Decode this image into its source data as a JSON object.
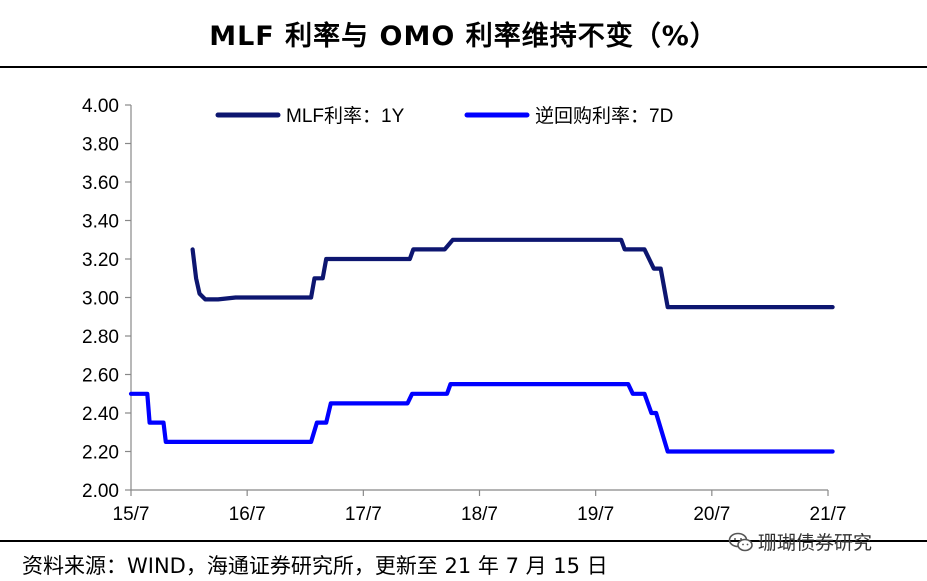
{
  "title": "MLF 利率与 OMO 利率维持不变（%）",
  "source": "资料来源：WIND，海通证券研究所，更新至 21 年 7 月 15 日",
  "watermark": "珊瑚债券研究",
  "watermark_icon": "wechat-icon",
  "colors": {
    "mlf": "#0d1670",
    "omo": "#0000ff",
    "axis": "#888888"
  },
  "chart_data": {
    "type": "line",
    "title": "MLF 利率与 OMO 利率维持不变（%）",
    "xlabel": "",
    "ylabel": "",
    "xlim": [
      2015.5,
      2021.5
    ],
    "ylim": [
      2.0,
      4.0
    ],
    "ytick_step": 0.2,
    "ytick_labels": [
      "2.00",
      "2.20",
      "2.40",
      "2.60",
      "2.80",
      "3.00",
      "3.20",
      "3.40",
      "3.60",
      "3.80",
      "4.00"
    ],
    "xtick_values": [
      2015.5,
      2016.5,
      2017.5,
      2018.5,
      2019.5,
      2020.5,
      2021.5
    ],
    "xtick_labels": [
      "15/7",
      "16/7",
      "17/7",
      "18/7",
      "19/7",
      "20/7",
      "21/7"
    ],
    "legend_position": "top",
    "grid": false,
    "series": [
      {
        "name": "MLF利率：1Y",
        "points": [
          [
            2016.03,
            3.25
          ],
          [
            2016.06,
            3.1
          ],
          [
            2016.09,
            3.02
          ],
          [
            2016.14,
            2.99
          ],
          [
            2016.25,
            2.99
          ],
          [
            2016.4,
            3.0
          ],
          [
            2017.05,
            3.0
          ],
          [
            2017.08,
            3.1
          ],
          [
            2017.15,
            3.1
          ],
          [
            2017.18,
            3.2
          ],
          [
            2017.9,
            3.2
          ],
          [
            2017.93,
            3.25
          ],
          [
            2018.2,
            3.25
          ],
          [
            2018.27,
            3.3
          ],
          [
            2019.72,
            3.3
          ],
          [
            2019.75,
            3.25
          ],
          [
            2019.92,
            3.25
          ],
          [
            2020.0,
            3.15
          ],
          [
            2020.06,
            3.15
          ],
          [
            2020.12,
            2.95
          ],
          [
            2021.54,
            2.95
          ]
        ]
      },
      {
        "name": "逆回购利率：7D",
        "points": [
          [
            2015.5,
            2.5
          ],
          [
            2015.64,
            2.5
          ],
          [
            2015.66,
            2.35
          ],
          [
            2015.78,
            2.35
          ],
          [
            2015.8,
            2.25
          ],
          [
            2017.05,
            2.25
          ],
          [
            2017.1,
            2.35
          ],
          [
            2017.18,
            2.35
          ],
          [
            2017.22,
            2.45
          ],
          [
            2017.88,
            2.45
          ],
          [
            2017.92,
            2.5
          ],
          [
            2018.22,
            2.5
          ],
          [
            2018.25,
            2.55
          ],
          [
            2019.78,
            2.55
          ],
          [
            2019.82,
            2.5
          ],
          [
            2019.92,
            2.5
          ],
          [
            2019.98,
            2.4
          ],
          [
            2020.02,
            2.4
          ],
          [
            2020.12,
            2.2
          ],
          [
            2021.54,
            2.2
          ]
        ]
      }
    ]
  }
}
